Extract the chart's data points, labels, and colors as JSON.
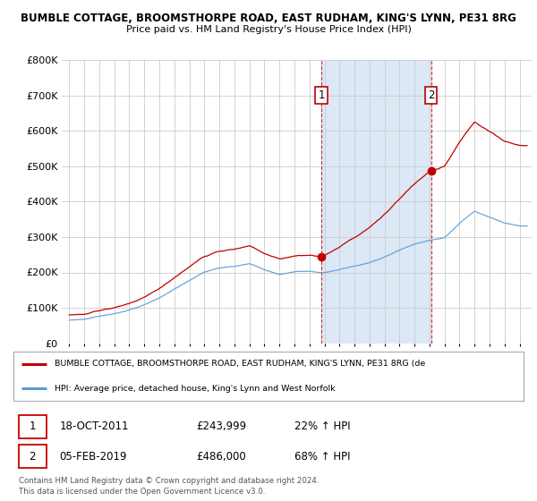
{
  "title_line1": "BUMBLE COTTAGE, BROOMSTHORPE ROAD, EAST RUDHAM, KING'S LYNN, PE31 8RG",
  "title_line2": "Price paid vs. HM Land Registry's House Price Index (HPI)",
  "ylim": [
    0,
    800000
  ],
  "yticks": [
    0,
    100000,
    200000,
    300000,
    400000,
    500000,
    600000,
    700000,
    800000
  ],
  "ytick_labels": [
    "£0",
    "£100K",
    "£200K",
    "£300K",
    "£400K",
    "£500K",
    "£600K",
    "£700K",
    "£800K"
  ],
  "hpi_color": "#5b9bd5",
  "price_color": "#c00000",
  "shade_color": "#dce8f5",
  "marker1_x": 2011.8,
  "marker1_y": 243999,
  "marker2_x": 2019.1,
  "marker2_y": 486000,
  "annotation1_label": "1",
  "annotation2_label": "2",
  "legend_price_label": "BUMBLE COTTAGE, BROOMSTHORPE ROAD, EAST RUDHAM, KING'S LYNN, PE31 8RG (de",
  "legend_hpi_label": "HPI: Average price, detached house, King's Lynn and West Norfolk",
  "table_row1": [
    "1",
    "18-OCT-2011",
    "£243,999",
    "22% ↑ HPI"
  ],
  "table_row2": [
    "2",
    "05-FEB-2019",
    "£486,000",
    "68% ↑ HPI"
  ],
  "footer": "Contains HM Land Registry data © Crown copyright and database right 2024.\nThis data is licensed under the Open Government Licence v3.0.",
  "bg_color": "#ffffff",
  "plot_bg_color": "#ffffff",
  "grid_color": "#cccccc",
  "vline1_x": 2011.8,
  "vline2_x": 2019.1,
  "xlim_start": 1994.5,
  "xlim_end": 2025.8
}
